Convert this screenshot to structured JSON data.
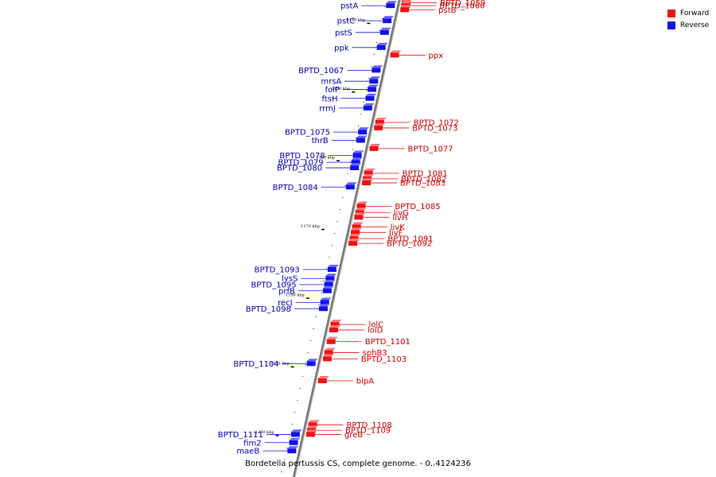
{
  "colors": {
    "forward": "#ee1111",
    "reverse": "#1111ee",
    "axis": "#777777",
    "forward_label": "#cc0000",
    "reverse_label": "#0000bb"
  },
  "legend": {
    "forward": "Forward",
    "reverse": "Reverse"
  },
  "caption": "Bordetella pertussis CS, complete genome. - 0..4124236",
  "genome_range_kbp": [
    1136,
    1206
  ],
  "kbp_marks": [
    {
      "text": "1140 kbp",
      "kbp": 1140
    },
    {
      "text": "1150 kbp",
      "kbp": 1150
    },
    {
      "text": "1160 kbp",
      "kbp": 1160
    },
    {
      "text": "1170 kbp",
      "kbp": 1170
    },
    {
      "text": "1180 kbp",
      "kbp": 1180
    },
    {
      "text": "1190 kbp",
      "kbp": 1190
    },
    {
      "text": "1200 kbp",
      "kbp": 1200
    }
  ],
  "reverse_genes": [
    {
      "name": "pstA",
      "kbp": 1137.4
    },
    {
      "name": "pstC",
      "kbp": 1139.6
    },
    {
      "name": "pstS",
      "kbp": 1141.3
    },
    {
      "name": "ppk",
      "kbp": 1143.5
    },
    {
      "name": "BPTD_1067",
      "kbp": 1146.8
    },
    {
      "name": "mrsA",
      "kbp": 1148.4
    },
    {
      "name": "folP",
      "kbp": 1149.6
    },
    {
      "name": "ftsH",
      "kbp": 1150.9
    },
    {
      "name": "rrmJ",
      "kbp": 1152.3
    },
    {
      "name": "BPTD_1075",
      "kbp": 1155.8
    },
    {
      "name": "thrB",
      "kbp": 1157.0
    },
    {
      "name": "BPTD_1078",
      "kbp": 1159.2
    },
    {
      "name": "BPTD_1079",
      "kbp": 1160.2
    },
    {
      "name": "BPTD_1080",
      "kbp": 1161.0
    },
    {
      "name": "BPTD_1084",
      "kbp": 1163.8
    },
    {
      "name": "BPTD_1093",
      "kbp": 1175.8
    },
    {
      "name": "lysS",
      "kbp": 1177.1
    },
    {
      "name": "BPTD_1095",
      "kbp": 1178.0
    },
    {
      "name": "prfB",
      "kbp": 1178.9
    },
    {
      "name": "recJ",
      "kbp": 1180.6
    },
    {
      "name": "BPTD_1098",
      "kbp": 1181.5
    },
    {
      "name": "BPTD_1104",
      "kbp": 1189.5
    },
    {
      "name": "BPTD_1111",
      "kbp": 1199.8
    },
    {
      "name": "fim2",
      "kbp": 1201.0
    },
    {
      "name": "maeB",
      "kbp": 1202.2
    }
  ],
  "forward_genes": [
    {
      "name": "BPTD_1059",
      "kbp": 1137.0
    },
    {
      "name": "BPTD_1060",
      "kbp": 1137.4
    },
    {
      "name": "pstB",
      "kbp": 1138.0
    },
    {
      "name": "ppx",
      "kbp": 1144.6
    },
    {
      "name": "BPTD_1072",
      "kbp": 1154.4
    },
    {
      "name": "BPTD_1073",
      "kbp": 1155.2
    },
    {
      "name": "BPTD_1077",
      "kbp": 1158.2
    },
    {
      "name": "BPTD_1081",
      "kbp": 1161.8
    },
    {
      "name": "BPTD_1082",
      "kbp": 1162.6
    },
    {
      "name": "BPTD_1083",
      "kbp": 1163.2
    },
    {
      "name": "BPTD_1085",
      "kbp": 1166.6
    },
    {
      "name": "livG",
      "kbp": 1167.5
    },
    {
      "name": "livH",
      "kbp": 1168.2
    },
    {
      "name": "livK",
      "kbp": 1169.6
    },
    {
      "name": "livF",
      "kbp": 1170.4
    },
    {
      "name": "BPTD_1091",
      "kbp": 1171.3
    },
    {
      "name": "BPTD_1092",
      "kbp": 1172.0
    },
    {
      "name": "lolC",
      "kbp": 1183.8
    },
    {
      "name": "lolD",
      "kbp": 1184.6
    },
    {
      "name": "BPTD_1101",
      "kbp": 1186.3
    },
    {
      "name": "sphB3",
      "kbp": 1187.9
    },
    {
      "name": "BPTD_1103",
      "kbp": 1188.8
    },
    {
      "name": "bipA",
      "kbp": 1192.0
    },
    {
      "name": "BPTD_1108",
      "kbp": 1198.4
    },
    {
      "name": "BPTD_1109",
      "kbp": 1199.2
    },
    {
      "name": "greB",
      "kbp": 1199.8
    }
  ]
}
